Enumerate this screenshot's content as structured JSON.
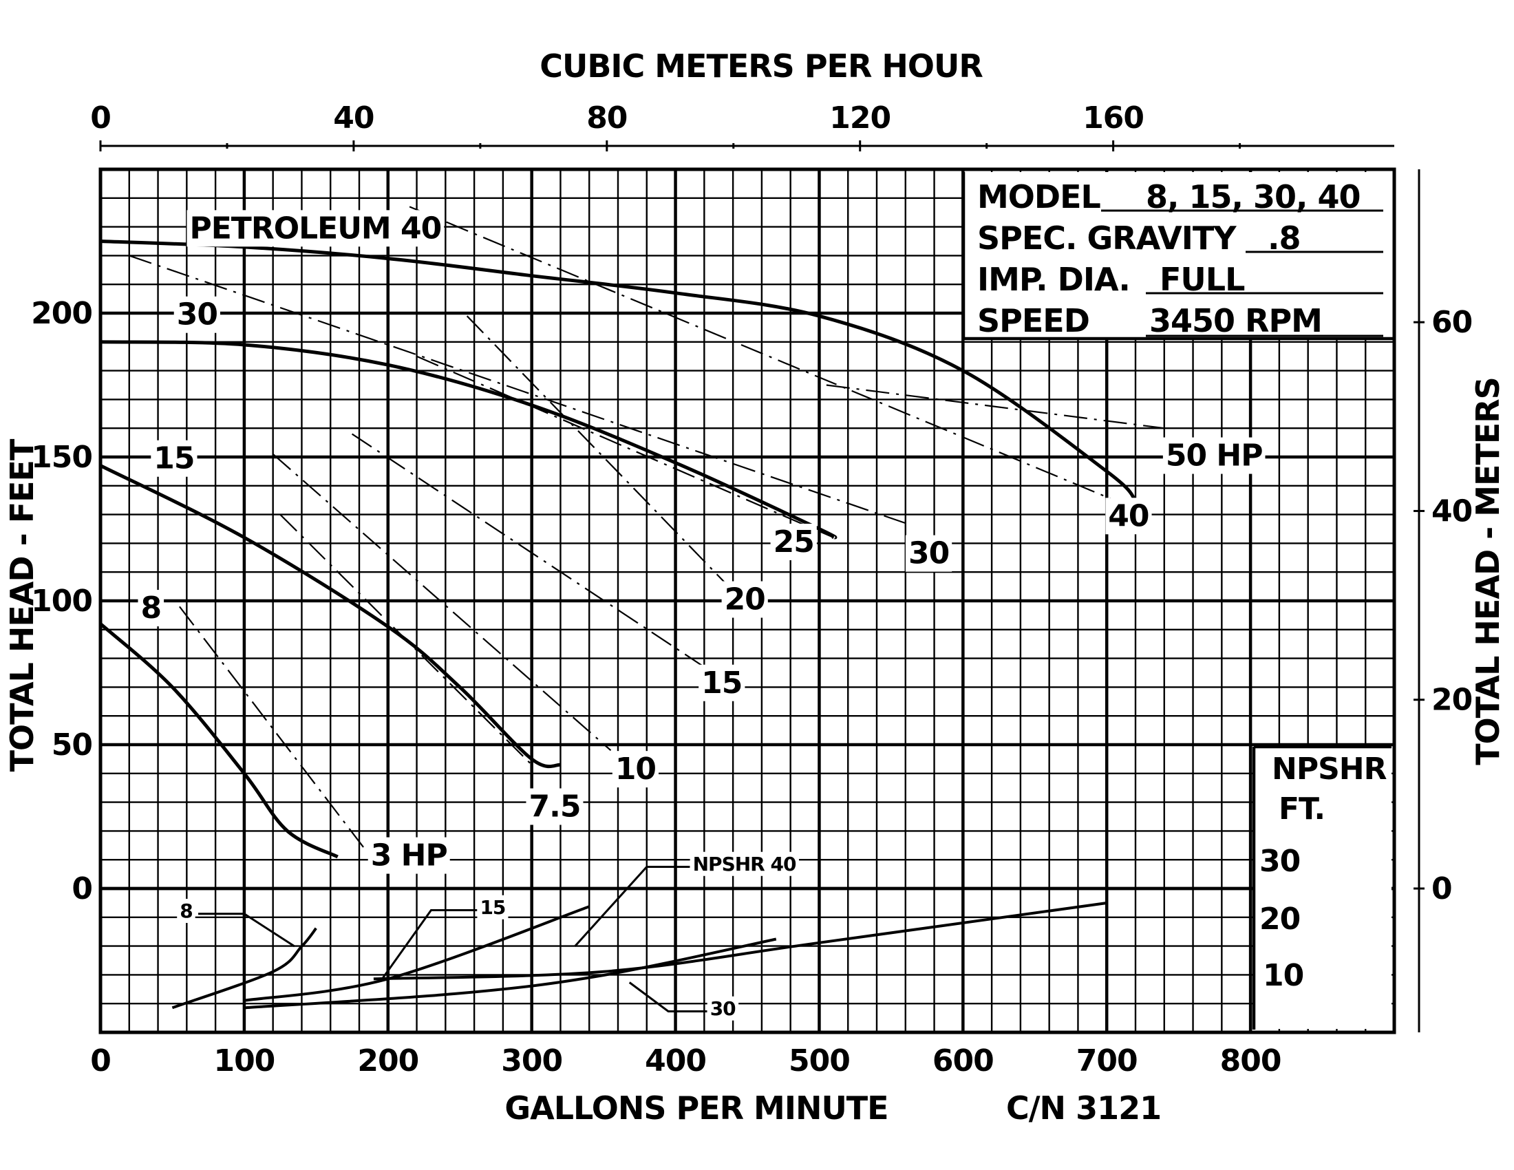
{
  "chart_data": {
    "type": "line",
    "title": "",
    "model_info": {
      "model_label": "MODEL",
      "model_value": "8, 15, 30, 40",
      "gravity_label": "SPEC. GRAVITY",
      "gravity_value": ".8",
      "impeller_label": "IMP. DIA.",
      "impeller_value": "FULL",
      "speed_label": "SPEED",
      "speed_value": "3450 RPM"
    },
    "axes": {
      "x_bottom": {
        "label": "GALLONS PER MINUTE",
        "ticks": [
          "0",
          "100",
          "200",
          "300",
          "400",
          "500",
          "600",
          "700",
          "800"
        ],
        "range": [
          0,
          900
        ]
      },
      "x_top": {
        "label": "CUBIC METERS PER HOUR",
        "ticks": [
          "0",
          "40",
          "80",
          "120",
          "160"
        ],
        "range": [
          0,
          204.4
        ]
      },
      "y_left": {
        "label": "TOTAL HEAD - FEET",
        "ticks": [
          "0",
          "50",
          "100",
          "150",
          "200"
        ],
        "range": [
          -50,
          250
        ]
      },
      "y_right": {
        "label": "TOTAL HEAD - METERS",
        "ticks": [
          "0",
          "20",
          "40",
          "60"
        ]
      },
      "npshr_axis": {
        "label_line1": "NPSHR",
        "label_line2": "FT.",
        "ticks": [
          "30",
          "20",
          "10"
        ]
      }
    },
    "catalog_number": "C/N 3121",
    "grid": true,
    "head_curves": [
      {
        "name": "8",
        "x": [
          0,
          50,
          100,
          130,
          165
        ],
        "y": [
          92,
          70,
          40,
          20,
          11
        ]
      },
      {
        "name": "15",
        "x": [
          0,
          100,
          200,
          250,
          300,
          320
        ],
        "y": [
          147,
          122,
          91,
          70,
          45,
          43
        ]
      },
      {
        "name": "30",
        "x": [
          0,
          100,
          200,
          300,
          400,
          500,
          510
        ],
        "y": [
          190,
          189,
          182,
          168,
          148,
          125,
          122
        ]
      },
      {
        "name": "PETROLEUM 40",
        "x": [
          0,
          100,
          200,
          300,
          400,
          500,
          600,
          700,
          720
        ],
        "y": [
          225,
          223,
          219,
          213,
          207,
          199,
          180,
          145,
          135
        ]
      }
    ],
    "hp_lines": [
      {
        "name": "3 HP",
        "x": [
          55,
          185
        ],
        "y": [
          98,
          13
        ]
      },
      {
        "name": "7.5",
        "x": [
          125,
          300
        ],
        "y": [
          130,
          43
        ]
      },
      {
        "name": "10",
        "x": [
          120,
          355
        ],
        "y": [
          151,
          48
        ]
      },
      {
        "name": "15",
        "x": [
          175,
          420
        ],
        "y": [
          158,
          77
        ]
      },
      {
        "name": "20",
        "x": [
          255,
          435
        ],
        "y": [
          199,
          106
        ]
      },
      {
        "name": "25",
        "x": [
          220,
          510
        ],
        "y": [
          185,
          122
        ]
      },
      {
        "name": "30",
        "x": [
          20,
          560
        ],
        "y": [
          220,
          127
        ]
      },
      {
        "name": "40",
        "x": [
          215,
          710
        ],
        "y": [
          237,
          134
        ]
      },
      {
        "name": "50 HP",
        "x": [
          505,
          740
        ],
        "y": [
          175,
          160
        ]
      }
    ],
    "npshr_curves": [
      {
        "name": "8",
        "x": [
          50,
          120,
          140,
          150
        ],
        "npshr_ft": [
          3,
          13,
          20,
          25
        ]
      },
      {
        "name": "15",
        "x": [
          100,
          200,
          340
        ],
        "npshr_ft": [
          5,
          11,
          31
        ]
      },
      {
        "name": "NPSHR 40",
        "x": [
          190,
          350,
          500,
          700
        ],
        "npshr_ft": [
          11,
          13,
          21,
          32
        ]
      },
      {
        "name": "30",
        "x": [
          100,
          250,
          350,
          470
        ],
        "npshr_ft": [
          3,
          7,
          12,
          22
        ]
      }
    ]
  }
}
